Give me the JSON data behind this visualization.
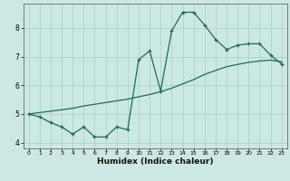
{
  "xlabel": "Humidex (Indice chaleur)",
  "ylabel": "",
  "bg_color": "#cce8e4",
  "line_color": "#1a6b5a",
  "grid_color": "#aad4cc",
  "x_data": [
    0,
    1,
    2,
    3,
    4,
    5,
    6,
    7,
    8,
    9,
    10,
    11,
    12,
    13,
    14,
    15,
    16,
    17,
    18,
    19,
    20,
    21,
    22,
    23
  ],
  "y_main": [
    5.0,
    4.9,
    4.7,
    4.55,
    4.3,
    4.55,
    4.2,
    4.2,
    4.55,
    4.45,
    6.9,
    7.2,
    5.8,
    7.9,
    8.55,
    8.55,
    8.1,
    7.6,
    7.25,
    7.4,
    7.45,
    7.45,
    7.05,
    6.75
  ],
  "y_trend": [
    5.0,
    5.05,
    5.1,
    5.15,
    5.2,
    5.28,
    5.34,
    5.4,
    5.46,
    5.52,
    5.6,
    5.68,
    5.78,
    5.9,
    6.05,
    6.2,
    6.38,
    6.52,
    6.65,
    6.73,
    6.8,
    6.85,
    6.88,
    6.82
  ],
  "xlim": [
    -0.5,
    23.5
  ],
  "ylim": [
    3.8,
    8.85
  ],
  "yticks": [
    4,
    5,
    6,
    7,
    8
  ],
  "xticks": [
    0,
    1,
    2,
    3,
    4,
    5,
    6,
    7,
    8,
    9,
    10,
    11,
    12,
    13,
    14,
    15,
    16,
    17,
    18,
    19,
    20,
    21,
    22,
    23
  ]
}
